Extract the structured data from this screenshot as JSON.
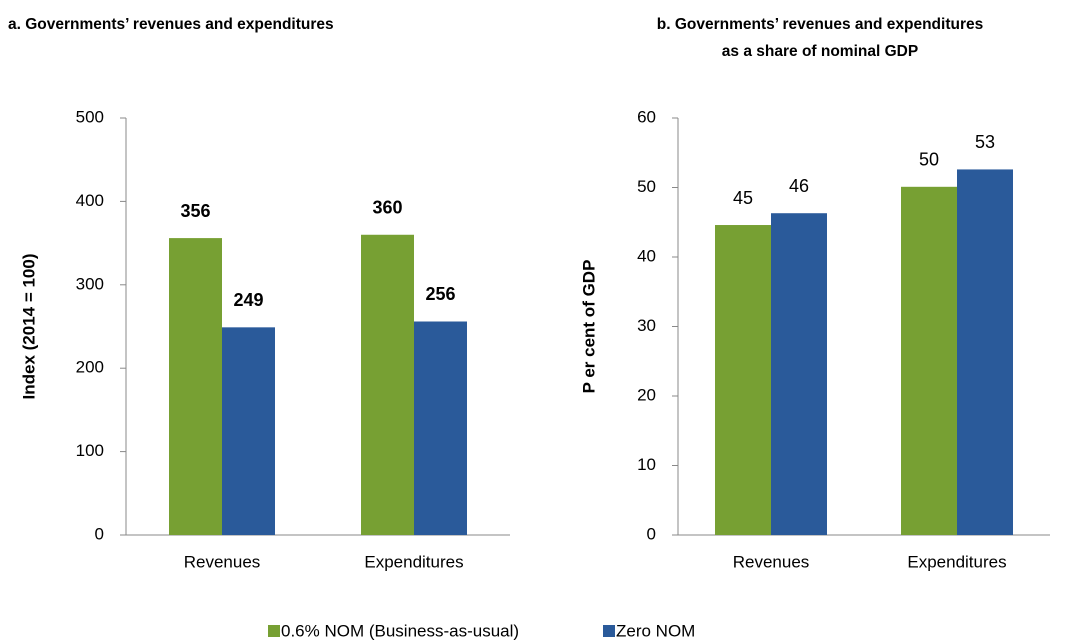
{
  "chart_data": [
    {
      "type": "bar",
      "title": [
        "a. Governments’ revenues and expenditures"
      ],
      "y_label": "Index  (2014 = 100)",
      "categories": [
        "Revenues",
        "Expenditures"
      ],
      "series": [
        {
          "name": "0.6% NOM (Business-as-usual)",
          "color": "#77a033",
          "values": [
            356,
            360
          ]
        },
        {
          "name": "Zero NOM",
          "color": "#2a5a9a",
          "values": [
            249,
            256
          ]
        }
      ],
      "value_label_weight": "bold",
      "ylim": [
        0,
        500
      ],
      "yticks": [
        0,
        100,
        200,
        300,
        400,
        500
      ]
    },
    {
      "type": "bar",
      "title": [
        "b. Governments’ revenues and expenditures",
        "as a share of nominal GDP"
      ],
      "y_label": "P er cent of GDP",
      "categories": [
        "Revenues",
        "Expenditures"
      ],
      "series": [
        {
          "color": "#77a033",
          "values": [
            44.6,
            50.1
          ],
          "value_labels": [
            "45",
            "50"
          ]
        },
        {
          "color": "#2a5a9a",
          "values": [
            46.3,
            52.6
          ],
          "value_labels": [
            "46",
            "53"
          ]
        }
      ],
      "value_label_weight": "normal",
      "ylim": [
        0,
        60
      ],
      "yticks": [
        0,
        10,
        20,
        30,
        40,
        50,
        60
      ]
    }
  ]
}
